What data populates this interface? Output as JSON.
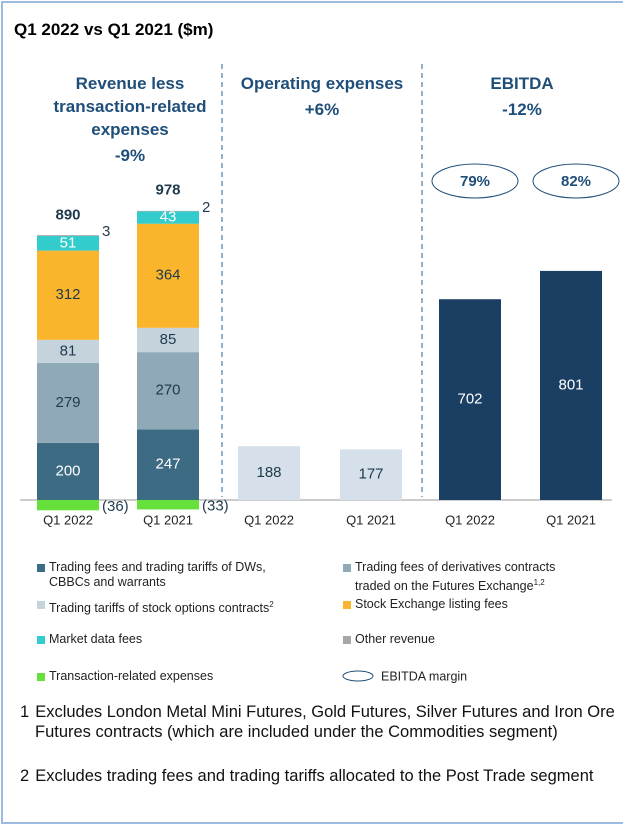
{
  "chart_data": {
    "type": "bar",
    "stacked": true,
    "title": "Q1 2022 vs Q1 2021 ($m)",
    "categories": [
      "Q1 2022",
      "Q1 2021"
    ],
    "panels": [
      {
        "title": "Revenue less transaction-related expenses",
        "change": "-9%",
        "totals": [
          890,
          978
        ],
        "series": [
          {
            "name": "Trading fees and trading tariffs of DWs, CBBCs and warrants",
            "color": "#3d6b84",
            "text_color": "#ffffff",
            "values": [
              200,
              247
            ]
          },
          {
            "name": "Trading fees of derivatives contracts traded on the Futures Exchange",
            "note_refs": "1,2",
            "color": "#8fa9b8",
            "text_color": "#1f3a4d",
            "values": [
              279,
              270
            ]
          },
          {
            "name": "Trading tariffs of stock options contracts",
            "note_refs": "2",
            "color": "#c5d3dd",
            "text_color": "#1f3a4d",
            "values": [
              81,
              85
            ]
          },
          {
            "name": "Stock Exchange listing fees",
            "color": "#fbb52c",
            "text_color": "#1f3a4d",
            "values": [
              312,
              364
            ]
          },
          {
            "name": "Market data fees",
            "color": "#33cccc",
            "text_color": "#ffffff",
            "values": [
              51,
              43
            ]
          },
          {
            "name": "Other revenue",
            "color": "#a6a6a6",
            "text_color": "#1f3a4d",
            "values": [
              3,
              2
            ]
          },
          {
            "name": "Transaction-related expenses",
            "color": "#66e03a",
            "text_color": "#1f3a4d",
            "values": [
              -36,
              -33
            ],
            "value_labels": [
              "(36)",
              "(33)"
            ]
          }
        ]
      },
      {
        "title": "Operating expenses",
        "change": "+6%",
        "series": [
          {
            "color": "#d5e0ea",
            "text_color": "#1f3a4d",
            "values": [
              188,
              177
            ]
          }
        ]
      },
      {
        "title": "EBITDA",
        "change": "-12%",
        "series": [
          {
            "color": "#1b3f63",
            "text_color": "#ffffff",
            "values": [
              702,
              801
            ]
          }
        ],
        "margin": {
          "name": "EBITDA margin",
          "values": [
            79,
            82
          ],
          "value_labels": [
            "79%",
            "82%"
          ]
        }
      }
    ]
  },
  "footnotes": [
    {
      "number": "1",
      "text": "Excludes London Metal Mini Futures, Gold Futures, Silver Futures and Iron Ore Futures contracts (which are included under the Commodities segment)"
    },
    {
      "number": "2",
      "text": "Excludes trading fees and trading tariffs allocated to the Post Trade segment"
    }
  ]
}
